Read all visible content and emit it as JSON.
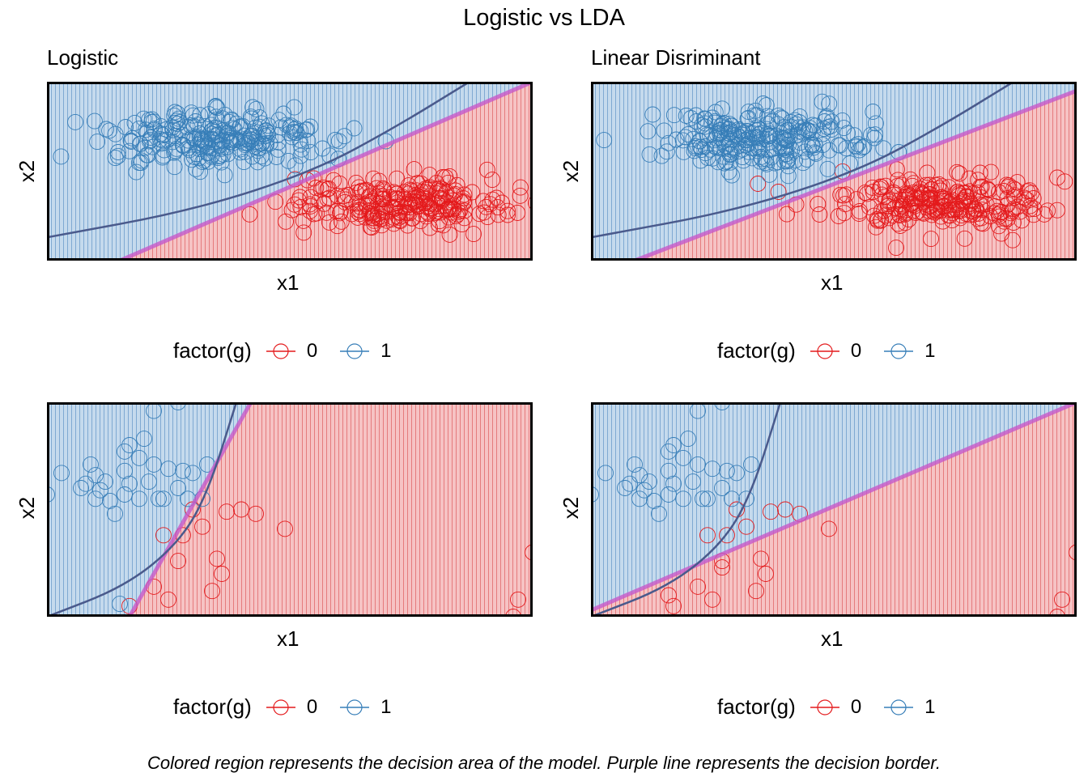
{
  "title": "Logistic vs LDA",
  "caption": "Colored region represents the decision area of the model. Purple line represents the decision border.",
  "colors": {
    "class0": "#E41A1C",
    "class1": "#377EB8",
    "border": "#C659C9",
    "qda_curve": "#4A5A8C"
  },
  "legend": {
    "title": "factor(g)",
    "labels": [
      "0",
      "1"
    ]
  },
  "panels": [
    {
      "title": "Logistic",
      "xlabel": "x1",
      "ylabel": "x2"
    },
    {
      "title": "Linear Disriminant",
      "xlabel": "x1",
      "ylabel": "x2"
    },
    {
      "title": "",
      "xlabel": "x1",
      "ylabel": "x2"
    },
    {
      "title": "",
      "xlabel": "x1",
      "ylabel": "x2"
    }
  ],
  "chart_data": [
    {
      "type": "scatter",
      "title": "Logistic",
      "xlabel": "x1",
      "ylabel": "x2",
      "xlim": [
        0,
        1
      ],
      "ylim": [
        0,
        1
      ],
      "decision_border": [
        [
          0.15,
          0.0
        ],
        [
          1.0,
          1.0
        ]
      ],
      "curve": [
        [
          0.0,
          0.13
        ],
        [
          0.3,
          0.28
        ],
        [
          0.55,
          0.5
        ],
        [
          0.72,
          0.75
        ],
        [
          0.87,
          1.0
        ]
      ],
      "series": [
        {
          "name": "0",
          "center": [
            0.72,
            0.32
          ],
          "spread": [
            0.11,
            0.07
          ],
          "n": 260
        },
        {
          "name": "1",
          "center": [
            0.35,
            0.68
          ],
          "spread": [
            0.11,
            0.08
          ],
          "n": 260
        }
      ]
    },
    {
      "type": "scatter",
      "title": "Linear Disriminant",
      "xlabel": "x1",
      "ylabel": "x2",
      "xlim": [
        0,
        1
      ],
      "ylim": [
        0,
        1
      ],
      "decision_border": [
        [
          0.09,
          0.0
        ],
        [
          1.0,
          0.95
        ]
      ],
      "curve": [
        [
          0.0,
          0.13
        ],
        [
          0.3,
          0.28
        ],
        [
          0.55,
          0.5
        ],
        [
          0.72,
          0.75
        ],
        [
          0.87,
          1.0
        ]
      ],
      "series": [
        {
          "name": "0",
          "center": [
            0.72,
            0.32
          ],
          "spread": [
            0.11,
            0.07
          ],
          "n": 260
        },
        {
          "name": "1",
          "center": [
            0.35,
            0.68
          ],
          "spread": [
            0.11,
            0.08
          ],
          "n": 260
        }
      ]
    },
    {
      "type": "scatter",
      "xlabel": "x1",
      "ylabel": "x2",
      "xlim": [
        0,
        1
      ],
      "ylim": [
        0,
        1
      ],
      "decision_border": [
        [
          0.17,
          0.0
        ],
        [
          0.42,
          1.0
        ]
      ],
      "curve": [
        [
          0.0,
          0.0
        ],
        [
          0.16,
          0.14
        ],
        [
          0.27,
          0.34
        ],
        [
          0.33,
          0.57
        ],
        [
          0.39,
          1.0
        ]
      ],
      "series": [
        {
          "name": "0",
          "points": [
            [
              0.3,
              0.5
            ],
            [
              0.28,
              0.38
            ],
            [
              0.32,
              0.42
            ],
            [
              0.35,
              0.27
            ],
            [
              0.34,
              0.12
            ],
            [
              0.25,
              0.08
            ],
            [
              0.4,
              0.5
            ],
            [
              0.37,
              0.49
            ],
            [
              0.43,
              0.48
            ],
            [
              0.49,
              0.41
            ],
            [
              0.24,
              0.38
            ],
            [
              0.36,
              0.2
            ],
            [
              0.27,
              0.26
            ],
            [
              0.97,
              0.08
            ],
            [
              1.0,
              0.3
            ],
            [
              0.96,
              0.0
            ],
            [
              0.17,
              0.05
            ],
            [
              0.22,
              0.14
            ]
          ]
        },
        {
          "name": "1",
          "points": [
            [
              0.0,
              0.57
            ],
            [
              0.03,
              0.67
            ],
            [
              0.07,
              0.6
            ],
            [
              0.09,
              0.71
            ],
            [
              0.12,
              0.63
            ],
            [
              0.1,
              0.55
            ],
            [
              0.14,
              0.48
            ],
            [
              0.16,
              0.57
            ],
            [
              0.16,
              0.68
            ],
            [
              0.17,
              0.62
            ],
            [
              0.19,
              0.74
            ],
            [
              0.21,
              0.63
            ],
            [
              0.23,
              0.55
            ],
            [
              0.25,
              0.69
            ],
            [
              0.27,
              0.6
            ],
            [
              0.29,
              0.55
            ],
            [
              0.3,
              0.67
            ],
            [
              0.2,
              0.83
            ],
            [
              0.17,
              0.8
            ],
            [
              0.16,
              0.77
            ],
            [
              0.33,
              0.71
            ],
            [
              0.24,
              0.55
            ],
            [
              0.22,
              0.71
            ],
            [
              0.19,
              0.55
            ],
            [
              0.13,
              0.54
            ],
            [
              0.1,
              0.66
            ],
            [
              0.32,
              0.55
            ],
            [
              0.08,
              0.62
            ],
            [
              0.28,
              0.68
            ],
            [
              0.27,
              1.0
            ],
            [
              0.22,
              0.96
            ],
            [
              0.15,
              0.06
            ],
            [
              0.11,
              0.59
            ]
          ]
        }
      ]
    },
    {
      "type": "scatter",
      "xlabel": "x1",
      "ylabel": "x2",
      "xlim": [
        0,
        1
      ],
      "ylim": [
        0,
        1
      ],
      "decision_border": [
        [
          0.0,
          0.03
        ],
        [
          1.0,
          1.0
        ]
      ],
      "curve": [
        [
          0.0,
          0.0
        ],
        [
          0.16,
          0.14
        ],
        [
          0.27,
          0.34
        ],
        [
          0.33,
          0.57
        ],
        [
          0.39,
          1.0
        ]
      ],
      "series": [
        {
          "name": "0",
          "points": [
            [
              0.28,
              0.38
            ],
            [
              0.32,
              0.42
            ],
            [
              0.35,
              0.27
            ],
            [
              0.34,
              0.12
            ],
            [
              0.25,
              0.08
            ],
            [
              0.4,
              0.5
            ],
            [
              0.37,
              0.49
            ],
            [
              0.43,
              0.48
            ],
            [
              0.49,
              0.41
            ],
            [
              0.24,
              0.38
            ],
            [
              0.36,
              0.2
            ],
            [
              0.27,
              0.26
            ],
            [
              0.97,
              0.08
            ],
            [
              1.0,
              0.3
            ],
            [
              0.96,
              0.0
            ],
            [
              0.17,
              0.05
            ],
            [
              0.22,
              0.14
            ],
            [
              0.16,
              0.1
            ],
            [
              0.27,
              0.23
            ],
            [
              0.3,
              0.5
            ]
          ]
        },
        {
          "name": "1",
          "points": [
            [
              0.0,
              0.57
            ],
            [
              0.03,
              0.67
            ],
            [
              0.07,
              0.6
            ],
            [
              0.09,
              0.71
            ],
            [
              0.12,
              0.63
            ],
            [
              0.1,
              0.55
            ],
            [
              0.14,
              0.48
            ],
            [
              0.16,
              0.57
            ],
            [
              0.16,
              0.68
            ],
            [
              0.17,
              0.62
            ],
            [
              0.19,
              0.74
            ],
            [
              0.21,
              0.63
            ],
            [
              0.23,
              0.55
            ],
            [
              0.25,
              0.69
            ],
            [
              0.27,
              0.6
            ],
            [
              0.29,
              0.55
            ],
            [
              0.3,
              0.67
            ],
            [
              0.2,
              0.83
            ],
            [
              0.17,
              0.8
            ],
            [
              0.16,
              0.77
            ],
            [
              0.33,
              0.71
            ],
            [
              0.24,
              0.55
            ],
            [
              0.22,
              0.71
            ],
            [
              0.19,
              0.55
            ],
            [
              0.13,
              0.54
            ],
            [
              0.1,
              0.66
            ],
            [
              0.32,
              0.55
            ],
            [
              0.08,
              0.62
            ],
            [
              0.28,
              0.68
            ],
            [
              0.27,
              1.0
            ],
            [
              0.22,
              0.96
            ],
            [
              0.11,
              0.59
            ]
          ]
        }
      ]
    }
  ]
}
